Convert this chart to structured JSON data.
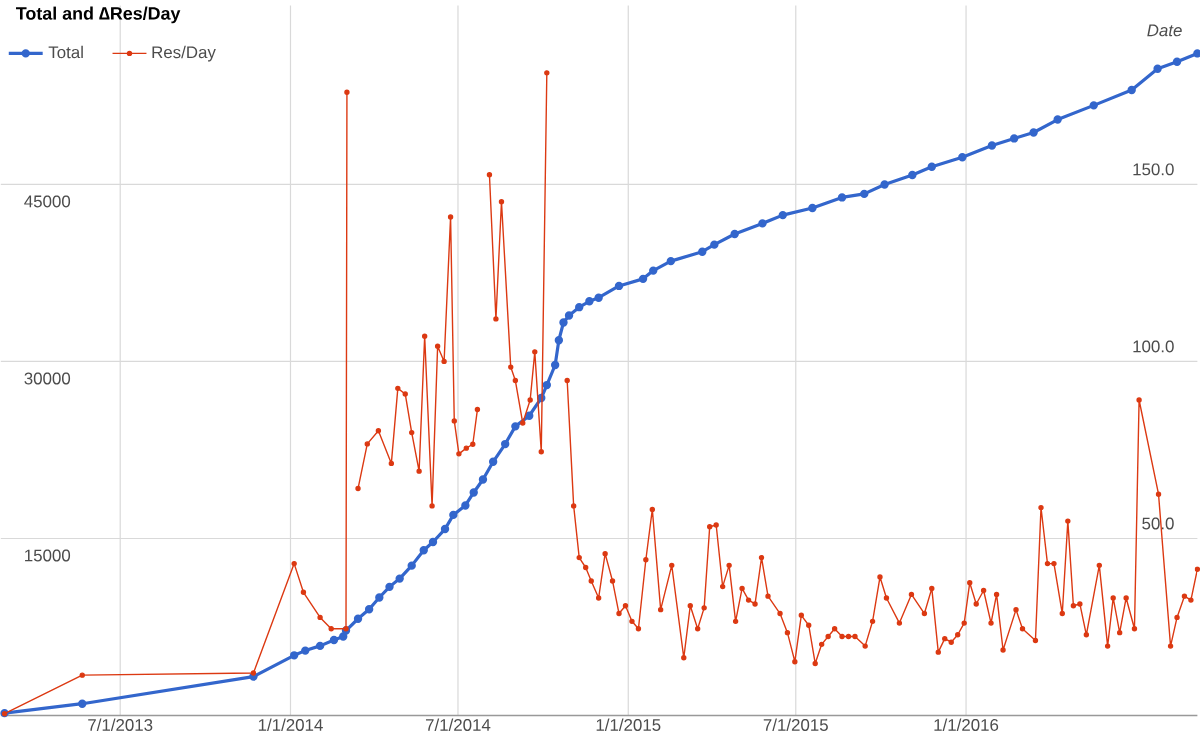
{
  "chart_data": {
    "type": "line",
    "title": "Total and ∆Res/Day",
    "xlabel": "Date",
    "xlim": [
      "2013-02-22",
      "2016-09-07"
    ],
    "xticks": [
      {
        "value": "2013-07-01",
        "label": "7/1/2013"
      },
      {
        "value": "2014-01-01",
        "label": "1/1/2014"
      },
      {
        "value": "2014-07-01",
        "label": "7/1/2014"
      },
      {
        "value": "2015-01-01",
        "label": "1/1/2015"
      },
      {
        "value": "2015-07-01",
        "label": "7/1/2015"
      },
      {
        "value": "2016-01-01",
        "label": "1/1/2016"
      }
    ],
    "ylim": [
      0,
      60160
    ],
    "yticks": [
      15000,
      30000,
      45000
    ],
    "y2lim": [
      0,
      200.5
    ],
    "y2ticks": [
      {
        "value": 50,
        "label": "50.0"
      },
      {
        "value": 100,
        "label": "100.0"
      },
      {
        "value": 150,
        "label": "150.0"
      }
    ],
    "grid": true,
    "legend": "top left",
    "marker": "circle",
    "line_style": "solid",
    "series": [
      {
        "name": "Total",
        "color": "#3366cc",
        "x": [
          "2013-02-26",
          "2013-05-21",
          "2013-11-22",
          "2014-01-05",
          "2014-01-17",
          "2014-02-02",
          "2014-02-17",
          "2014-02-27",
          "2014-03-02",
          "2014-03-15",
          "2014-03-27",
          "2014-04-07",
          "2014-04-18",
          "2014-04-29",
          "2014-05-12",
          "2014-05-25",
          "2014-06-04",
          "2014-06-17",
          "2014-06-26",
          "2014-07-09",
          "2014-07-18",
          "2014-07-28",
          "2014-08-08",
          "2014-08-21",
          "2014-09-01",
          "2014-09-16",
          "2014-09-29",
          "2014-10-05",
          "2014-10-14",
          "2014-10-18",
          "2014-10-23",
          "2014-10-29",
          "2014-11-09",
          "2014-11-20",
          "2014-11-30",
          "2014-12-22",
          "2015-01-17",
          "2015-01-28",
          "2015-02-16",
          "2015-03-22",
          "2015-04-04",
          "2015-04-26",
          "2015-05-26",
          "2015-06-17",
          "2015-07-19",
          "2015-08-20",
          "2015-09-13",
          "2015-10-05",
          "2015-11-04",
          "2015-11-25",
          "2015-12-28",
          "2016-01-29",
          "2016-02-22",
          "2016-03-14",
          "2016-04-09",
          "2016-05-18",
          "2016-06-28",
          "2016-07-26",
          "2016-08-16",
          "2016-09-07"
        ],
        "values": [
          200,
          1000,
          3300,
          5100,
          5500,
          5900,
          6400,
          6700,
          7200,
          8200,
          9000,
          10000,
          10900,
          11600,
          12700,
          14000,
          14700,
          15800,
          17000,
          17800,
          18900,
          20000,
          21500,
          23000,
          24500,
          25400,
          26900,
          28000,
          29700,
          31800,
          33300,
          33900,
          34600,
          35100,
          35400,
          36400,
          37000,
          37700,
          38500,
          39300,
          39900,
          40800,
          41700,
          42400,
          43000,
          43900,
          44200,
          45000,
          45800,
          46500,
          47300,
          48300,
          48900,
          49400,
          50500,
          51700,
          53000,
          54800,
          55400,
          56100
        ]
      },
      {
        "name": "Res/Day",
        "color": "#dc3912",
        "axis": "y2",
        "x": [
          "2013-02-26",
          "2013-05-21",
          "2013-11-22",
          "2014-01-05",
          "2014-01-15",
          "2014-02-02",
          "2014-02-14",
          "2014-03-02",
          "2014-03-03",
          "2014-03-05",
          "2014-03-15",
          "2014-03-25",
          "2014-04-06",
          "2014-04-20",
          "2014-04-27",
          "2014-05-05",
          "2014-05-12",
          "2014-05-20",
          "2014-05-26",
          "2014-06-03",
          "2014-06-09",
          "2014-06-16",
          "2014-06-23",
          "2014-06-27",
          "2014-07-02",
          "2014-07-10",
          "2014-07-17",
          "2014-07-22",
          "2014-07-26",
          "2014-08-04",
          "2014-08-11",
          "2014-08-17",
          "2014-08-27",
          "2014-09-01",
          "2014-09-09",
          "2014-09-17",
          "2014-09-22",
          "2014-09-29",
          "2014-10-05",
          "2014-10-16",
          "2014-10-27",
          "2014-11-03",
          "2014-11-09",
          "2014-11-16",
          "2014-11-22",
          "2014-11-30",
          "2014-12-07",
          "2014-12-15",
          "2014-12-22",
          "2014-12-29",
          "2015-01-05",
          "2015-01-12",
          "2015-01-20",
          "2015-01-27",
          "2015-02-05",
          "2015-02-17",
          "2015-03-02",
          "2015-03-09",
          "2015-03-17",
          "2015-03-24",
          "2015-03-30",
          "2015-04-06",
          "2015-04-13",
          "2015-04-20",
          "2015-04-27",
          "2015-05-04",
          "2015-05-11",
          "2015-05-18",
          "2015-05-25",
          "2015-06-01",
          "2015-06-14",
          "2015-06-22",
          "2015-06-30",
          "2015-07-07",
          "2015-07-15",
          "2015-07-22",
          "2015-07-29",
          "2015-08-05",
          "2015-08-12",
          "2015-08-20",
          "2015-08-27",
          "2015-09-03",
          "2015-09-14",
          "2015-09-22",
          "2015-09-30",
          "2015-10-07",
          "2015-10-21",
          "2015-11-03",
          "2015-11-17",
          "2015-11-25",
          "2015-12-02",
          "2015-12-09",
          "2015-12-16",
          "2015-12-23",
          "2015-12-30",
          "2016-01-05",
          "2016-01-12",
          "2016-01-20",
          "2016-01-28",
          "2016-02-03",
          "2016-02-10",
          "2016-02-24",
          "2016-03-02",
          "2016-03-16",
          "2016-03-22",
          "2016-03-29",
          "2016-04-05",
          "2016-04-14",
          "2016-04-20",
          "2016-04-26",
          "2016-05-03",
          "2016-05-10",
          "2016-05-24",
          "2016-06-02",
          "2016-06-08",
          "2016-06-15",
          "2016-06-22",
          "2016-07-01",
          "2016-07-06",
          "2016-07-27",
          "2016-08-09",
          "2016-08-16",
          "2016-08-24",
          "2016-08-31",
          "2016-09-07"
        ],
        "values": [
          0.5,
          11.4,
          12.0,
          42.9,
          34.8,
          27.7,
          24.5,
          24.5,
          176,
          null,
          64.1,
          76.7,
          80.4,
          71.2,
          92.4,
          90.8,
          79.9,
          69.0,
          107.1,
          59.2,
          104.3,
          100.0,
          140.8,
          83.2,
          73.9,
          75.5,
          76.6,
          86.4,
          null,
          152.7,
          112.0,
          145.1,
          98.4,
          94.6,
          82.6,
          89.1,
          102.7,
          74.5,
          181.5,
          null,
          94.6,
          59.2,
          44.6,
          41.8,
          38.0,
          33.2,
          45.7,
          38.0,
          28.8,
          31.0,
          26.6,
          24.5,
          44.0,
          58.2,
          29.9,
          42.4,
          16.3,
          31.0,
          24.5,
          30.4,
          53.3,
          53.8,
          36.4,
          42.4,
          26.6,
          35.9,
          32.6,
          31.5,
          44.6,
          33.7,
          28.8,
          23.4,
          15.2,
          28.3,
          25.5,
          14.7,
          20.1,
          22.3,
          24.5,
          22.3,
          22.3,
          22.3,
          19.6,
          26.6,
          39.1,
          33.2,
          26.1,
          34.2,
          28.8,
          35.9,
          17.9,
          21.7,
          20.7,
          22.8,
          26.1,
          37.5,
          31.5,
          35.3,
          26.1,
          34.2,
          18.5,
          29.9,
          24.5,
          21.2,
          58.7,
          42.9,
          42.9,
          28.8,
          54.9,
          31.0,
          31.5,
          22.8,
          42.4,
          19.6,
          33.2,
          23.4,
          33.2,
          24.5,
          89.1,
          62.5,
          19.6,
          27.7,
          33.7,
          32.6,
          41.3
        ]
      }
    ]
  }
}
